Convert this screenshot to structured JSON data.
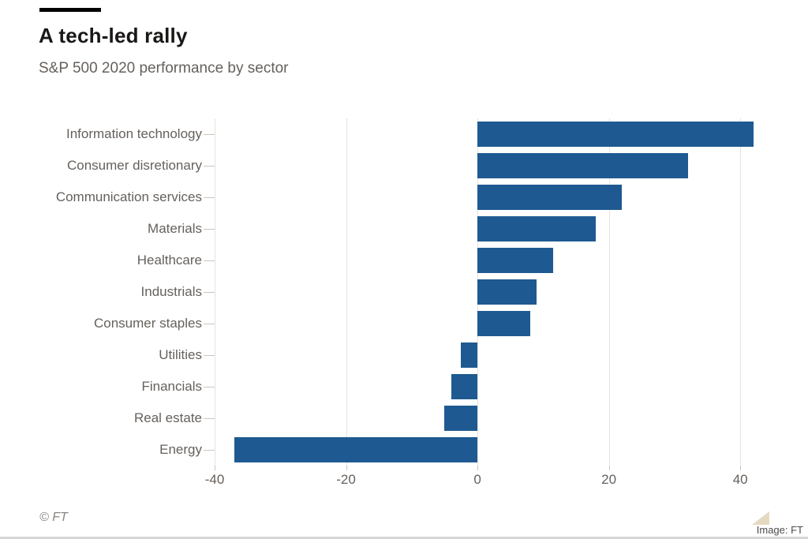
{
  "header": {
    "title": "A tech-led rally",
    "subtitle": "S&P 500 2020 performance by sector"
  },
  "chart_data": {
    "type": "bar",
    "orientation": "horizontal",
    "title": "A tech-led rally",
    "subtitle": "S&P 500 2020 performance by sector",
    "categories": [
      "Information technology",
      "Consumer disretionary",
      "Communication services",
      "Materials",
      "Healthcare",
      "Industrials",
      "Consumer staples",
      "Utilities",
      "Financials",
      "Real estate",
      "Energy"
    ],
    "values": [
      42,
      32,
      22,
      18,
      11.5,
      9,
      8,
      -2.5,
      -4,
      -5,
      -37
    ],
    "xlabel": "",
    "ylabel": "",
    "xlim": [
      -40,
      45.5
    ],
    "x_ticks": [
      -40,
      -20,
      0,
      20,
      40
    ],
    "x_tick_labels": [
      "-40",
      "-20",
      "0",
      "20",
      "40"
    ],
    "grid": true,
    "legend": "none",
    "bar_color": "#1e5a91",
    "gridline_color": "#e8e2dc",
    "label_color": "#66605c"
  },
  "footer": {
    "copyright": "© FT",
    "credit": "Image: FT"
  }
}
